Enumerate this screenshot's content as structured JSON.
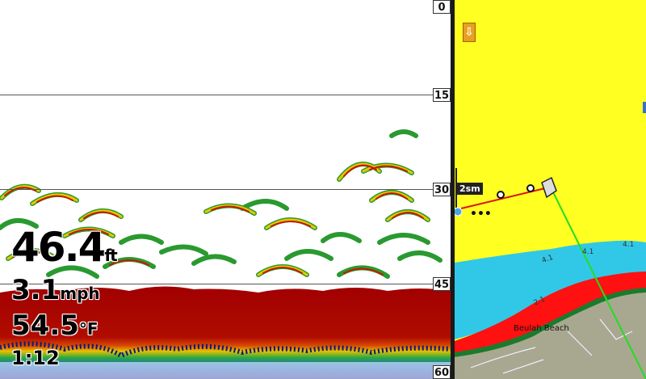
{
  "sonar": {
    "depth_scale": [
      "0",
      "15",
      "30",
      "45",
      "60"
    ],
    "depth": {
      "value": "46.4",
      "unit": "ft"
    },
    "speed": {
      "value": "3.1",
      "unit": "mph"
    },
    "temperature": {
      "value": "54.5",
      "unit": "°F"
    },
    "time": "1:12"
  },
  "map": {
    "scale_label": "2sm",
    "place_label": "Beulah Beach",
    "contour_labels": [
      "4.1",
      "4.1",
      "4.1",
      "4.1",
      "2.1"
    ],
    "more_indicator": "•••",
    "north_icon": "down-arrow-icon",
    "colors": {
      "land": "#ffff22",
      "shallow": "#31c8e8",
      "deep": "#ff1111",
      "shore": "#a8a890"
    }
  }
}
